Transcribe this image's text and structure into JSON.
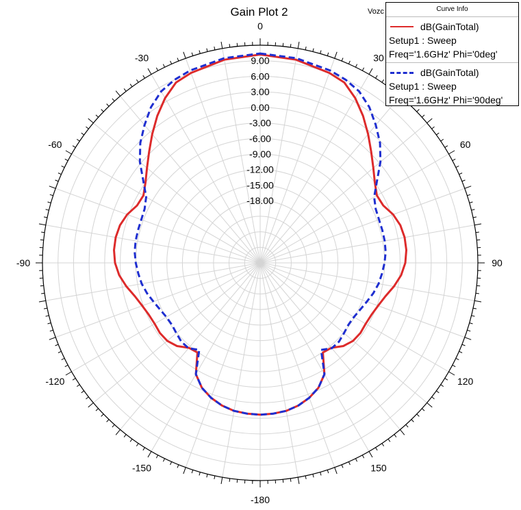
{
  "title": "Gain Plot 2",
  "corner_label": "Vozc",
  "legend": {
    "header": "Curve Info",
    "entries": [
      {
        "name": "dB(GainTotal)",
        "setup": "Setup1 : Sweep",
        "params": "Freq='1.6GHz' Phi='0deg'",
        "color": "#dd2b2b",
        "style": "solid"
      },
      {
        "name": "dB(GainTotal)",
        "setup": "Setup1 : Sweep",
        "params": "Freq='1.6GHz' Phi='90deg'",
        "color": "#1f2fd0",
        "style": "dashed"
      }
    ]
  },
  "chart_data": {
    "type": "polar",
    "title": "Gain Plot 2",
    "angle_unit": "deg",
    "angle_ticks": [
      0,
      30,
      60,
      90,
      120,
      150,
      -180,
      -150,
      -120,
      -90,
      -60,
      -30
    ],
    "radial_ticks": [
      "-18.00",
      "-15.00",
      "-12.00",
      "-9.00",
      "-6.00",
      "-3.00",
      "0.00",
      "3.00",
      "6.00",
      "9.00"
    ],
    "r_min": -30,
    "r_max": 12,
    "grid": true,
    "legend_position": "top-right",
    "series": [
      {
        "name": "dB(GainTotal) Setup1 : Sweep Freq='1.6GHz' Phi='0deg'",
        "color": "#dd2b2b",
        "theta": [
          0,
          10,
          20,
          25,
          30,
          35,
          40,
          45,
          50,
          55,
          60,
          65,
          70,
          75,
          80,
          85,
          90,
          95,
          100,
          105,
          110,
          115,
          120,
          125,
          130,
          135,
          140,
          145,
          150,
          155,
          160,
          165,
          170,
          175,
          180
        ],
        "r": [
          10.2,
          9.8,
          9.0,
          8.4,
          6.7,
          4.6,
          2.4,
          0.3,
          -1.5,
          -3.0,
          -4.0,
          -3.8,
          -2.7,
          -2.0,
          -1.7,
          -1.7,
          -2.0,
          -2.7,
          -3.8,
          -5.0,
          -5.8,
          -6.3,
          -6.5,
          -6.4,
          -6.6,
          -7.3,
          -8.6,
          -8.9,
          -5.2,
          -3.4,
          -2.3,
          -1.5,
          -1.0,
          -0.8,
          -0.7
        ]
      },
      {
        "name": "dB(GainTotal) Setup1 : Sweep Freq='1.6GHz' Phi='90deg'",
        "color": "#1f2fd0",
        "theta": [
          0,
          10,
          20,
          25,
          30,
          35,
          40,
          45,
          50,
          55,
          60,
          65,
          70,
          75,
          80,
          85,
          90,
          95,
          100,
          105,
          110,
          115,
          120,
          125,
          130,
          135,
          140,
          145,
          150,
          155,
          160,
          165,
          170,
          175,
          180
        ],
        "r": [
          10.4,
          10.1,
          9.5,
          9.0,
          8.2,
          6.7,
          4.7,
          2.7,
          0.3,
          -2.5,
          -4.6,
          -5.4,
          -5.6,
          -5.6,
          -5.6,
          -5.7,
          -6.0,
          -6.4,
          -6.8,
          -7.4,
          -8.1,
          -8.7,
          -9.1,
          -9.2,
          -8.9,
          -8.5,
          -8.5,
          -9.5,
          -5.2,
          -3.4,
          -2.3,
          -1.5,
          -1.0,
          -0.8,
          -0.7
        ]
      }
    ]
  }
}
